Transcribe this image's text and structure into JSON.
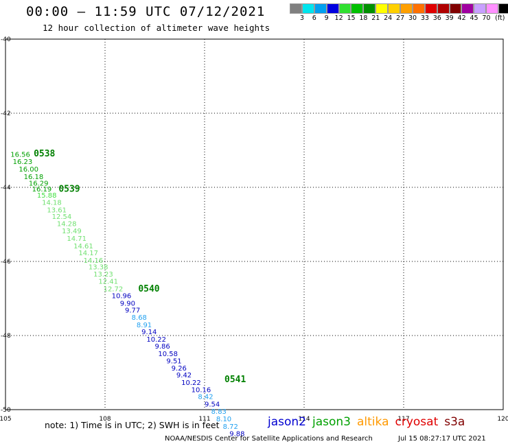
{
  "header": {
    "title": "00:00 – 11:59 UTC 07/12/2021",
    "subtitle": "12 hour collection of altimeter wave heights"
  },
  "legend": {
    "colors": [
      "#808080",
      "#00e5ee",
      "#00a0f0",
      "#0000e0",
      "#30e030",
      "#00c000",
      "#009000",
      "#ffff00",
      "#ffd000",
      "#ffa000",
      "#ff7000",
      "#e00000",
      "#b00000",
      "#800000",
      "#a000a0",
      "#c8a0ff",
      "#ff90ff",
      "#000000"
    ],
    "ticks": [
      "3",
      "6",
      "9",
      "12",
      "15",
      "18",
      "21",
      "24",
      "27",
      "30",
      "33",
      "36",
      "39",
      "42",
      "45",
      "70",
      "(ft)"
    ]
  },
  "map": {
    "x_ticks": [
      "105",
      "108",
      "111",
      "114",
      "117",
      "120"
    ],
    "y_ticks": [
      "-40",
      "-42",
      "-44",
      "-46",
      "-48",
      "-50"
    ],
    "lon_range": [
      105,
      120
    ],
    "lat_range": [
      -50,
      -40
    ]
  },
  "track_labels": [
    {
      "text": "0538",
      "lon": 105.85,
      "lat": -43.07,
      "color": "#008000"
    },
    {
      "text": "0539",
      "lon": 106.6,
      "lat": -44.03,
      "color": "#008000"
    },
    {
      "text": "0540",
      "lon": 109.0,
      "lat": -46.72,
      "color": "#008000"
    },
    {
      "text": "0541",
      "lon": 111.6,
      "lat": -49.17,
      "color": "#008000"
    }
  ],
  "observations": [
    {
      "v": "16.56",
      "lon": 105.15,
      "lat": -43.1,
      "c": "#00a000"
    },
    {
      "v": "16.23",
      "lon": 105.22,
      "lat": -43.3,
      "c": "#00a000"
    },
    {
      "v": "16.00",
      "lon": 105.4,
      "lat": -43.5,
      "c": "#00a000"
    },
    {
      "v": "16.18",
      "lon": 105.55,
      "lat": -43.7,
      "c": "#00a000"
    },
    {
      "v": "16.29",
      "lon": 105.7,
      "lat": -43.88,
      "c": "#00a000"
    },
    {
      "v": "16.19",
      "lon": 105.8,
      "lat": -44.04,
      "c": "#00a000"
    },
    {
      "v": "15.88",
      "lon": 105.95,
      "lat": -44.2,
      "c": "#40e040"
    },
    {
      "v": "14.18",
      "lon": 106.1,
      "lat": -44.4,
      "c": "#70e070"
    },
    {
      "v": "13.61",
      "lon": 106.25,
      "lat": -44.6,
      "c": "#70e070"
    },
    {
      "v": "12.54",
      "lon": 106.4,
      "lat": -44.78,
      "c": "#70e070"
    },
    {
      "v": "14.28",
      "lon": 106.55,
      "lat": -44.97,
      "c": "#70e070"
    },
    {
      "v": "13.49",
      "lon": 106.7,
      "lat": -45.17,
      "c": "#70e070"
    },
    {
      "v": "14.71",
      "lon": 106.85,
      "lat": -45.37,
      "c": "#70e070"
    },
    {
      "v": "14.61",
      "lon": 107.05,
      "lat": -45.57,
      "c": "#70e070"
    },
    {
      "v": "14.17",
      "lon": 107.2,
      "lat": -45.76,
      "c": "#70e070"
    },
    {
      "v": "14.16",
      "lon": 107.35,
      "lat": -45.96,
      "c": "#70e070"
    },
    {
      "v": "13.38",
      "lon": 107.5,
      "lat": -46.14,
      "c": "#70e070"
    },
    {
      "v": "13.23",
      "lon": 107.65,
      "lat": -46.33,
      "c": "#70e070"
    },
    {
      "v": "12.41",
      "lon": 107.8,
      "lat": -46.53,
      "c": "#70e070"
    },
    {
      "v": "12.72",
      "lon": 107.95,
      "lat": -46.73,
      "c": "#70e070"
    },
    {
      "v": "10.96",
      "lon": 108.2,
      "lat": -46.92,
      "c": "#0000c0"
    },
    {
      "v": "9.90",
      "lon": 108.45,
      "lat": -47.12,
      "c": "#0000c0"
    },
    {
      "v": "9.77",
      "lon": 108.6,
      "lat": -47.31,
      "c": "#0000c0"
    },
    {
      "v": "8.68",
      "lon": 108.8,
      "lat": -47.5,
      "c": "#20a0f0"
    },
    {
      "v": "8.91",
      "lon": 108.95,
      "lat": -47.7,
      "c": "#20a0f0"
    },
    {
      "v": "9.14",
      "lon": 109.1,
      "lat": -47.89,
      "c": "#0000c0"
    },
    {
      "v": "10.22",
      "lon": 109.25,
      "lat": -48.09,
      "c": "#0000c0"
    },
    {
      "v": "9.86",
      "lon": 109.5,
      "lat": -48.28,
      "c": "#0000c0"
    },
    {
      "v": "10.58",
      "lon": 109.6,
      "lat": -48.48,
      "c": "#0000c0"
    },
    {
      "v": "9.51",
      "lon": 109.85,
      "lat": -48.68,
      "c": "#0000c0"
    },
    {
      "v": "9.26",
      "lon": 110.0,
      "lat": -48.87,
      "c": "#0000c0"
    },
    {
      "v": "9.42",
      "lon": 110.15,
      "lat": -49.06,
      "c": "#0000c0"
    },
    {
      "v": "10.22",
      "lon": 110.3,
      "lat": -49.26,
      "c": "#0000c0"
    },
    {
      "v": "10.16",
      "lon": 110.6,
      "lat": -49.45,
      "c": "#0000c0"
    },
    {
      "v": "8.42",
      "lon": 110.8,
      "lat": -49.64,
      "c": "#20a0f0"
    },
    {
      "v": "9.54",
      "lon": 111.0,
      "lat": -49.84,
      "c": "#0000c0"
    },
    {
      "v": "8.83",
      "lon": 111.2,
      "lat": -50.04,
      "c": "#20a0f0"
    },
    {
      "v": "8.10",
      "lon": 111.35,
      "lat": -50.24,
      "c": "#20a0f0"
    },
    {
      "v": "8.72",
      "lon": 111.55,
      "lat": -50.44,
      "c": "#20a0f0"
    },
    {
      "v": "9.88",
      "lon": 111.75,
      "lat": -50.64,
      "c": "#0000c0"
    }
  ],
  "footer": {
    "note": "note:  1) Time is in UTC;  2) SWH is in feet",
    "satellites": [
      {
        "name": "jason2",
        "color": "#0000d0"
      },
      {
        "name": "jason3",
        "color": "#00a000"
      },
      {
        "name": "altika",
        "color": "#ff9900"
      },
      {
        "name": "cryosat",
        "color": "#e00000"
      },
      {
        "name": "s3a",
        "color": "#800000"
      }
    ],
    "credit": "NOAA/NESDIS Center for Satellite Applications and Research",
    "timestamp": "Jul 15 08:27:17 UTC 2021"
  }
}
